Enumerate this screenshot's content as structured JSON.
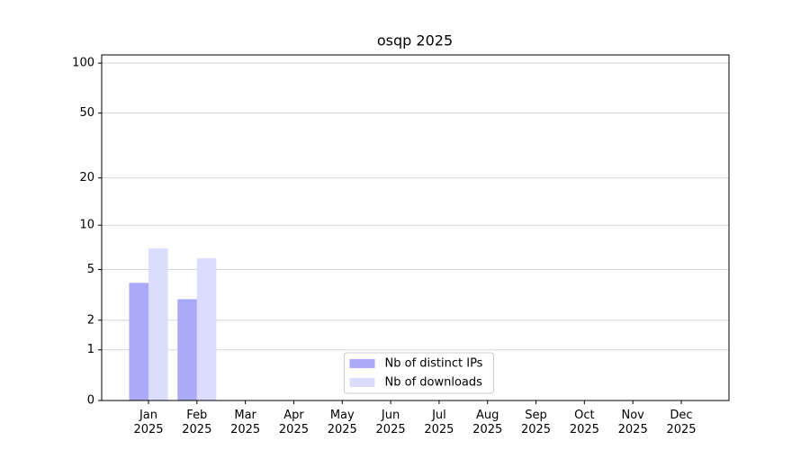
{
  "chart_data": {
    "type": "bar",
    "title": "osqp 2025",
    "categories": [
      "Jan\n2025",
      "Feb\n2025",
      "Mar\n2025",
      "Apr\n2025",
      "May\n2025",
      "Jun\n2025",
      "Jul\n2025",
      "Aug\n2025",
      "Sep\n2025",
      "Oct\n2025",
      "Nov\n2025",
      "Dec\n2025"
    ],
    "series": [
      {
        "name": "Nb of distinct IPs",
        "color": "#aaaaf8",
        "values": [
          4,
          3,
          null,
          null,
          null,
          null,
          null,
          null,
          null,
          null,
          null,
          null
        ]
      },
      {
        "name": "Nb of downloads",
        "color": "#dcdcfc",
        "values": [
          7,
          6,
          null,
          null,
          null,
          null,
          null,
          null,
          null,
          null,
          null,
          null
        ]
      }
    ],
    "yscale": "log1p",
    "ylim": [
      0,
      112
    ],
    "yticks": [
      0,
      1,
      2,
      5,
      10,
      20,
      50,
      100
    ],
    "grid": true,
    "legend": "lower center"
  }
}
